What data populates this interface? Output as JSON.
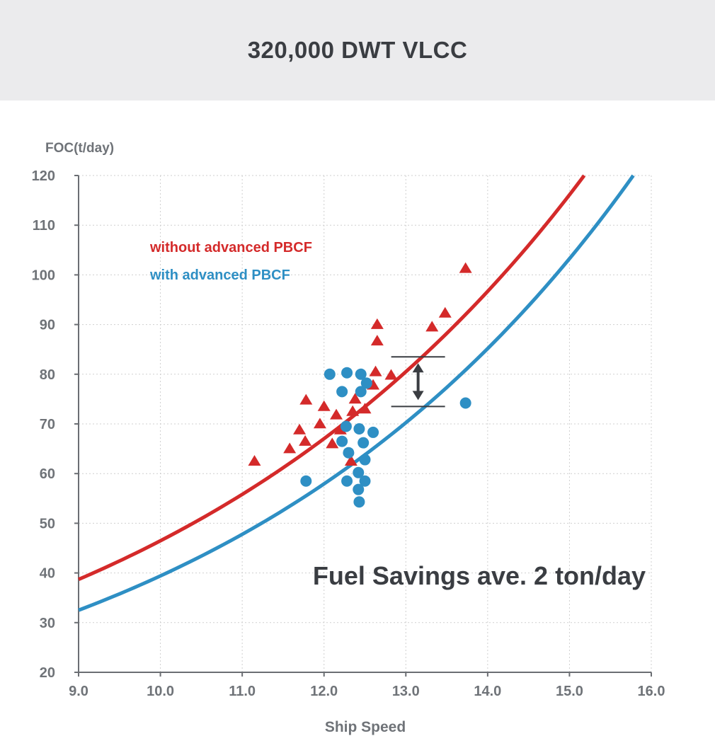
{
  "header": {
    "title": "320,000 DWT VLCC"
  },
  "colors": {
    "red": "#d42a2a",
    "blue": "#2e8fc4",
    "grid": "#cfcfcf",
    "axis": "#6b6e73",
    "text": "#3a3d42"
  },
  "chart_data": {
    "type": "scatter",
    "ylabel": "FOC(t/day)",
    "xlabel": "Ship Speed",
    "xlim": [
      9.0,
      16.0
    ],
    "ylim": [
      20,
      120
    ],
    "x_ticks": [
      "9.0",
      "10.0",
      "11.0",
      "12.0",
      "13.0",
      "14.0",
      "15.0",
      "16.0"
    ],
    "y_ticks": [
      "20",
      "30",
      "40",
      "50",
      "60",
      "70",
      "80",
      "90",
      "100",
      "110",
      "120"
    ],
    "grid": true,
    "legend_placement": "top-left",
    "series": [
      {
        "name": "without advanced PBCF",
        "color": "#d42a2a",
        "marker": "triangle",
        "points": [
          [
            11.15,
            62.5
          ],
          [
            11.58,
            65.0
          ],
          [
            11.7,
            68.8
          ],
          [
            11.77,
            66.5
          ],
          [
            11.78,
            74.8
          ],
          [
            11.95,
            70.0
          ],
          [
            12.0,
            73.5
          ],
          [
            12.1,
            66.0
          ],
          [
            12.15,
            71.8
          ],
          [
            12.2,
            68.8
          ],
          [
            12.33,
            62.5
          ],
          [
            12.35,
            72.5
          ],
          [
            12.38,
            75.0
          ],
          [
            12.5,
            73.0
          ],
          [
            12.6,
            77.8
          ],
          [
            12.63,
            80.5
          ],
          [
            12.65,
            86.7
          ],
          [
            12.65,
            90.0
          ],
          [
            12.82,
            79.8
          ],
          [
            13.32,
            89.5
          ],
          [
            13.48,
            92.3
          ],
          [
            13.73,
            101.3
          ]
        ],
        "trend": {
          "model": "exponential",
          "x": [
            9.0,
            15.18
          ],
          "y": [
            38.7,
            120.0
          ]
        }
      },
      {
        "name": "with advanced PBCF",
        "color": "#2e8fc4",
        "marker": "circle",
        "points": [
          [
            11.78,
            58.5
          ],
          [
            12.07,
            80.0
          ],
          [
            12.22,
            76.5
          ],
          [
            12.22,
            66.5
          ],
          [
            12.27,
            69.5
          ],
          [
            12.28,
            58.5
          ],
          [
            12.28,
            80.3
          ],
          [
            12.3,
            64.2
          ],
          [
            12.42,
            60.2
          ],
          [
            12.42,
            56.8
          ],
          [
            12.43,
            54.3
          ],
          [
            12.43,
            69.0
          ],
          [
            12.45,
            80.0
          ],
          [
            12.45,
            76.5
          ],
          [
            12.48,
            66.2
          ],
          [
            12.5,
            62.8
          ],
          [
            12.5,
            58.5
          ],
          [
            12.52,
            78.2
          ],
          [
            12.6,
            68.3
          ],
          [
            13.73,
            74.2
          ]
        ],
        "trend": {
          "model": "exponential",
          "x": [
            9.0,
            15.78
          ],
          "y": [
            32.5,
            120.0
          ]
        }
      }
    ],
    "annotations": [
      {
        "text": "Fuel Savings ave. 2 ton/day"
      },
      {
        "type": "double-arrow",
        "x": 13.15,
        "y": [
          83.5,
          73.5
        ]
      }
    ]
  }
}
